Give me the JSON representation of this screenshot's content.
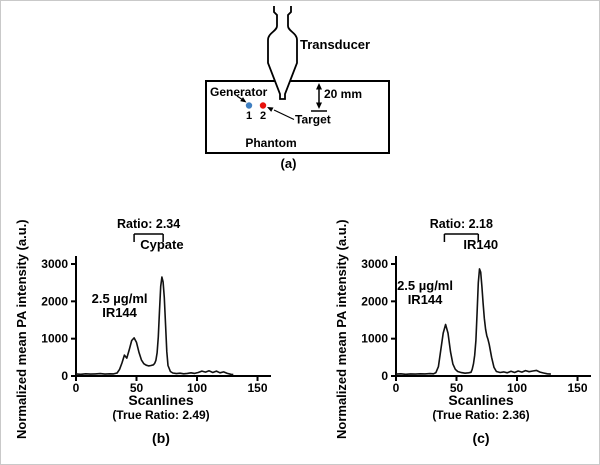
{
  "diagram": {
    "transducer_label": "Transducer",
    "generator_label": "Generator",
    "depth_label": "20 mm",
    "target_label": "Target",
    "phantom_label": "Phantom",
    "point1_label": "1",
    "point2_label": "2",
    "caption": "(a)",
    "point1_color": "#3f7fc1",
    "point2_color": "#e8120c"
  },
  "chart_data": [
    {
      "type": "line",
      "caption": "(b)",
      "ylabel": "Normalized mean PA intensity (a.u.)",
      "xlabel": "Scanlines",
      "ratio_label": "Ratio: 2.34",
      "true_ratio_label": "(True Ratio: 2.49)",
      "legend": "none",
      "grid": false,
      "xlim": [
        0,
        157
      ],
      "ylim": [
        0,
        3000
      ],
      "xticks": [
        0,
        50,
        100,
        150
      ],
      "yticks": [
        0,
        1000,
        2000,
        3000
      ],
      "bracket": {
        "x1": 48,
        "x2": 72
      },
      "annotations": [
        {
          "text": "2.5 µg/ml\nIR144",
          "x": 36,
          "y": 1950
        },
        {
          "text": "Cypate",
          "x": 71,
          "y": 3400
        }
      ],
      "x": [
        0,
        4,
        8,
        12,
        16,
        20,
        24,
        28,
        31,
        34,
        36,
        38,
        40,
        42,
        44,
        46,
        48,
        50,
        52,
        54,
        56,
        58,
        60,
        62,
        64,
        65,
        66,
        67,
        68,
        69,
        70,
        71,
        72,
        73,
        74,
        75,
        76,
        78,
        80,
        83,
        86,
        89,
        92,
        95,
        98,
        101,
        104,
        107,
        110,
        113,
        116,
        119,
        122,
        125,
        128,
        130
      ],
      "y": [
        55,
        45,
        60,
        50,
        55,
        65,
        50,
        60,
        55,
        80,
        180,
        350,
        560,
        480,
        700,
        950,
        1020,
        900,
        640,
        430,
        330,
        290,
        270,
        280,
        300,
        340,
        420,
        620,
        1050,
        1750,
        2400,
        2650,
        2520,
        2100,
        1350,
        650,
        280,
        120,
        80,
        65,
        75,
        60,
        70,
        85,
        70,
        95,
        130,
        105,
        140,
        95,
        130,
        85,
        110,
        70,
        45,
        40
      ]
    },
    {
      "type": "line",
      "caption": "(c)",
      "ylabel": "Normalized mean PA intensity (a.u.)",
      "xlabel": "Scanlines",
      "ratio_label": "Ratio: 2.18",
      "true_ratio_label": "(True Ratio: 2.36)",
      "legend": "none",
      "grid": false,
      "xlim": [
        0,
        157
      ],
      "ylim": [
        0,
        3000
      ],
      "xticks": [
        0,
        50,
        100,
        150
      ],
      "yticks": [
        0,
        1000,
        2000,
        3000
      ],
      "bracket": {
        "x1": 40,
        "x2": 68
      },
      "annotations": [
        {
          "text": "2.5 µg/ml\nIR144",
          "x": 24,
          "y": 2300
        },
        {
          "text": "IR140",
          "x": 70,
          "y": 3400
        }
      ],
      "x": [
        0,
        4,
        8,
        12,
        16,
        20,
        24,
        28,
        31,
        33,
        35,
        37,
        39,
        41,
        43,
        45,
        47,
        49,
        51,
        54,
        57,
        60,
        62,
        63,
        64,
        65,
        66,
        67,
        68,
        69,
        70,
        71,
        72,
        73,
        74,
        75,
        76,
        77,
        79,
        81,
        83,
        86,
        89,
        92,
        95,
        98,
        101,
        104,
        107,
        110,
        113,
        116,
        119,
        122,
        125,
        128
      ],
      "y": [
        50,
        60,
        45,
        55,
        50,
        60,
        55,
        65,
        60,
        90,
        250,
        700,
        1150,
        1380,
        1150,
        650,
        320,
        180,
        120,
        90,
        75,
        85,
        100,
        180,
        330,
        560,
        950,
        1700,
        2500,
        2870,
        2780,
        2400,
        1950,
        1550,
        1250,
        1080,
        980,
        850,
        500,
        230,
        120,
        95,
        110,
        85,
        125,
        95,
        135,
        105,
        145,
        115,
        135,
        150,
        105,
        80,
        60,
        50
      ]
    }
  ]
}
